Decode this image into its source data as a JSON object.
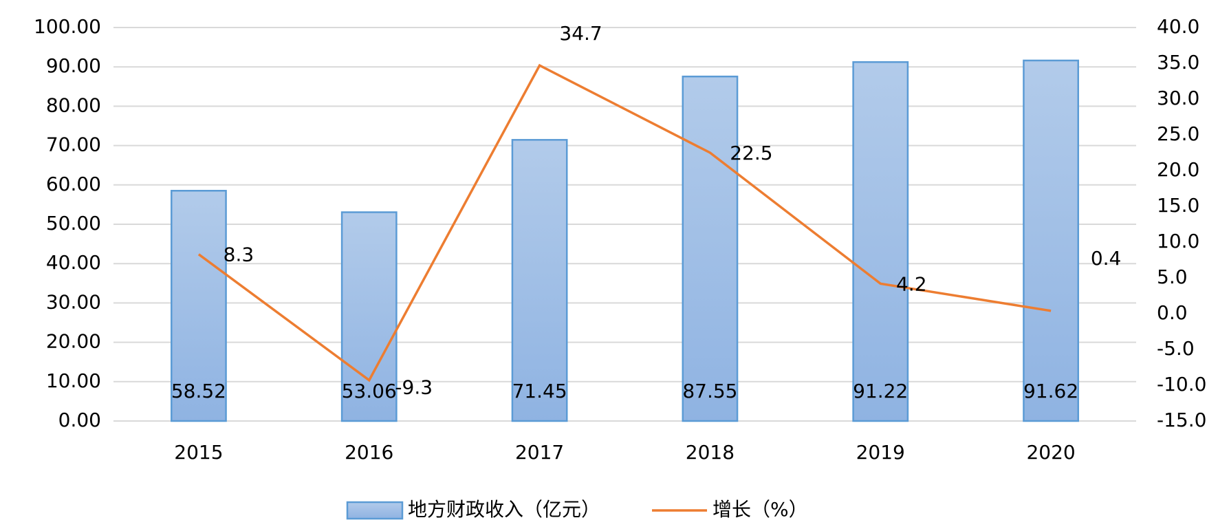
{
  "chart_data": {
    "type": "bar",
    "categories": [
      "2015",
      "2016",
      "2017",
      "2018",
      "2019",
      "2020"
    ],
    "series": [
      {
        "name": "地方财政收入（亿元）",
        "type": "bar",
        "color": "#5b9bd5",
        "values": [
          58.52,
          53.06,
          71.45,
          87.55,
          91.22,
          91.62
        ]
      },
      {
        "name": "增长（%）",
        "type": "line",
        "axis": "y2",
        "color": "#ed7d31",
        "values": [
          8.3,
          -9.3,
          34.7,
          22.5,
          4.2,
          0.4
        ]
      }
    ],
    "ylim": [
      0,
      100
    ],
    "yticks": [
      {
        "value": 0,
        "label": "0.00"
      },
      {
        "value": 10,
        "label": "10.00"
      },
      {
        "value": 20,
        "label": "20.00"
      },
      {
        "value": 30,
        "label": "30.00"
      },
      {
        "value": 40,
        "label": "40.00"
      },
      {
        "value": 50,
        "label": "50.00"
      },
      {
        "value": 60,
        "label": "60.00"
      },
      {
        "value": 70,
        "label": "70.00"
      },
      {
        "value": 80,
        "label": "80.00"
      },
      {
        "value": 90,
        "label": "90.00"
      },
      {
        "value": 100,
        "label": "100.00"
      }
    ],
    "y2lim": [
      -15,
      40
    ],
    "y2ticks": [
      {
        "value": -15,
        "label": "-15.0"
      },
      {
        "value": -10,
        "label": "-10.0"
      },
      {
        "value": -5,
        "label": "-5.0"
      },
      {
        "value": 0,
        "label": "0.0"
      },
      {
        "value": 5,
        "label": "5.0"
      },
      {
        "value": 10,
        "label": "10.0"
      },
      {
        "value": 15,
        "label": "15.0"
      },
      {
        "value": 20,
        "label": "20.0"
      },
      {
        "value": 25,
        "label": "25.0"
      },
      {
        "value": 30,
        "label": "30.0"
      },
      {
        "value": 35,
        "label": "35.0"
      },
      {
        "value": 40,
        "label": "40.0"
      }
    ],
    "grid": true,
    "legend": "bottom"
  }
}
